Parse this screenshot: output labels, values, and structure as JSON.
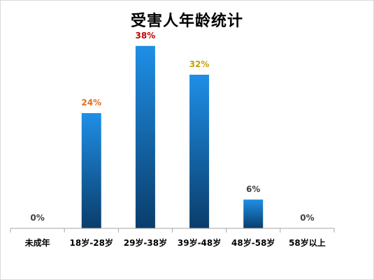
{
  "chart_data": {
    "type": "bar",
    "title": "受害人年龄统计",
    "categories": [
      "未成年",
      "18岁-28岁",
      "29岁-38岁",
      "39岁-48岁",
      "48岁-58岁",
      "58岁以上"
    ],
    "values": [
      0,
      24,
      38,
      32,
      6,
      0
    ],
    "value_labels": [
      "0%",
      "24%",
      "38%",
      "32%",
      "6%",
      "0%"
    ],
    "label_colors": [
      "#404040",
      "#e07020",
      "#c00000",
      "#c8a000",
      "#404040",
      "#404040"
    ],
    "ylim": [
      0,
      40
    ],
    "grid": false,
    "legend": "none",
    "bar_color_top": "#1f8fe6",
    "bar_color_bottom": "#0a3d6b",
    "axis_color": "#a6a6a6"
  }
}
